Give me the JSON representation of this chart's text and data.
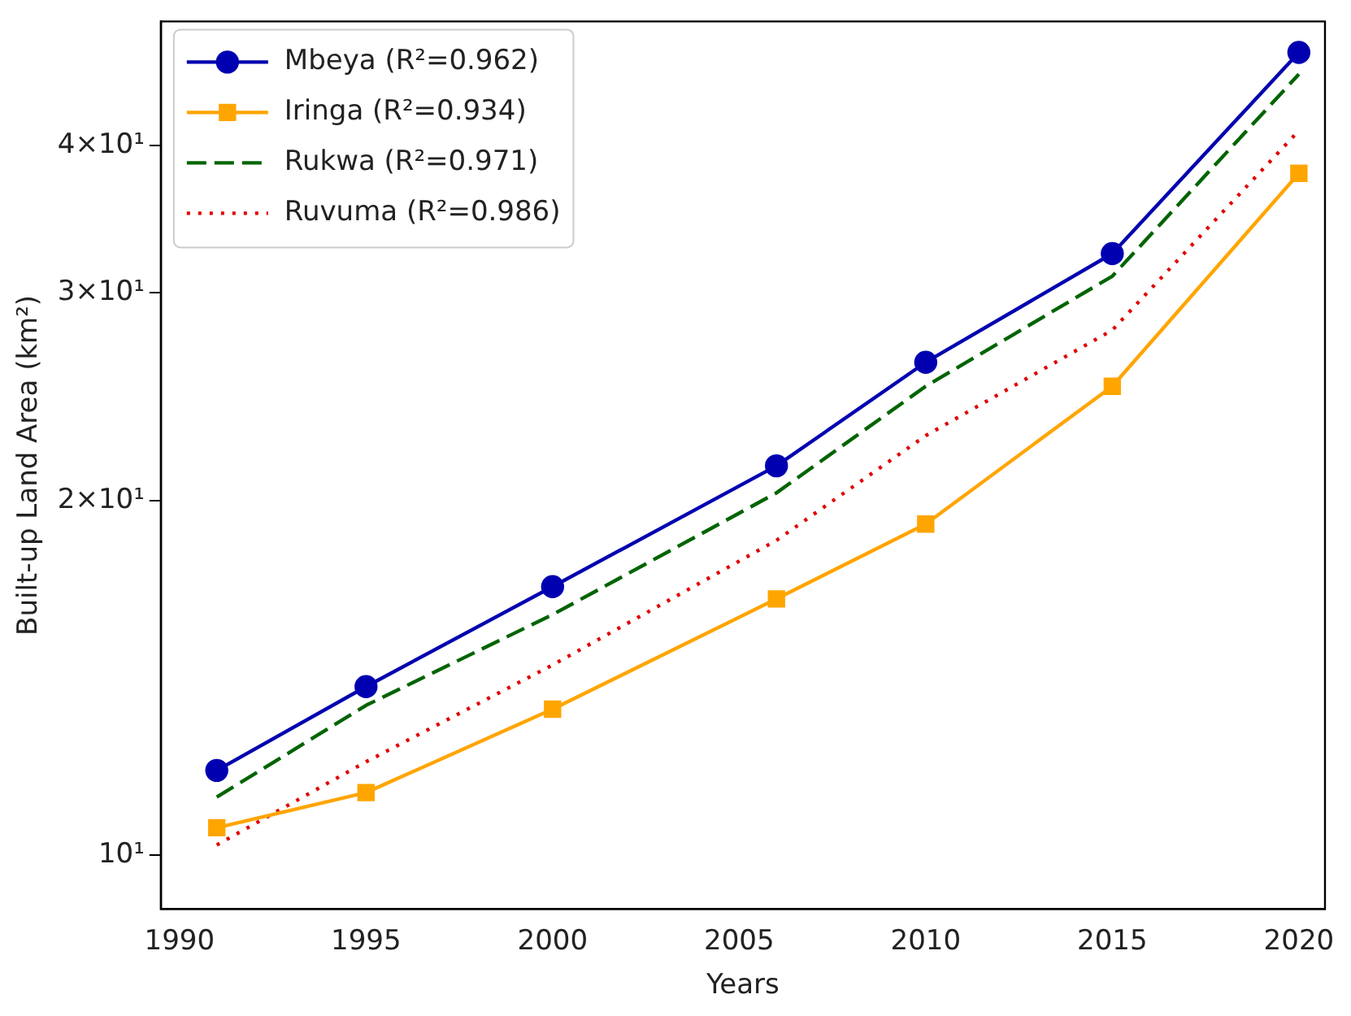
{
  "chart_data": {
    "type": "line",
    "xlabel": "Years",
    "ylabel": "Built-up Land Area (km²)",
    "log": "y",
    "x": [
      1991,
      1995,
      2000,
      2006,
      2010,
      2015,
      2020
    ],
    "xlim": [
      1989.5,
      2020.7
    ],
    "xticks": [
      1990,
      1995,
      2000,
      2005,
      2010,
      2015,
      2020
    ],
    "ylim": [
      9.0,
      51
    ],
    "yticks": [
      {
        "value": 10,
        "label": "10¹"
      },
      {
        "value": 20,
        "label": "2×10¹"
      },
      {
        "value": 30,
        "label": "3×10¹"
      },
      {
        "value": 40,
        "label": "4×10¹"
      }
    ],
    "grid": false,
    "legend": "top left",
    "series": [
      {
        "name": "Mbeya (R²=0.962)",
        "color": "#0000b0",
        "marker": "circle",
        "line_style": "solid",
        "values": [
          11.8,
          13.9,
          16.9,
          21.4,
          26.2,
          32.4,
          48.0
        ]
      },
      {
        "name": "Iringa (R²=0.934)",
        "color": "#ffa500",
        "marker": "square",
        "line_style": "solid",
        "values": [
          10.55,
          11.3,
          13.3,
          16.5,
          19.1,
          25.0,
          37.9
        ]
      },
      {
        "name": "Rukwa (R²=0.971)",
        "color": "#006400",
        "marker": "none",
        "line_style": "dashed",
        "values": [
          11.2,
          13.4,
          16.0,
          20.3,
          25.0,
          31.0,
          46.0
        ]
      },
      {
        "name": "Ruvuma (R²=0.986)",
        "color": "#e00000",
        "marker": "none",
        "line_style": "dotted",
        "values": [
          10.2,
          12.0,
          14.5,
          18.5,
          22.7,
          27.9,
          41.2
        ]
      }
    ]
  }
}
